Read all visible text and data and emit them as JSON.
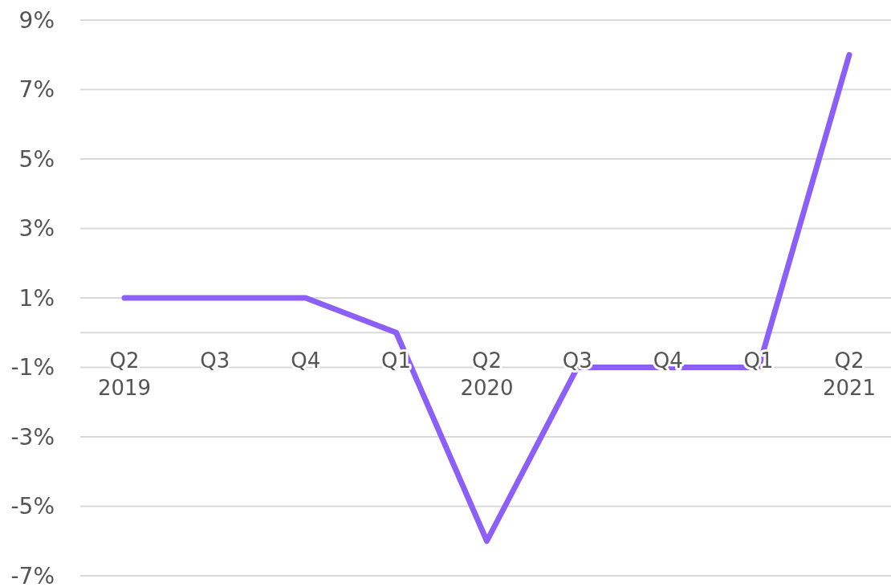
{
  "chart_data": {
    "type": "line",
    "categories": [
      "Q2\n2019",
      "Q3",
      "Q4",
      "Q1",
      "Q2\n2020",
      "Q3",
      "Q4",
      "Q1",
      "Q2\n2021"
    ],
    "series": [
      {
        "color": "#8c5ff9",
        "values": [
          1,
          1,
          1,
          0,
          -6,
          -1,
          -1,
          -1,
          8
        ]
      }
    ],
    "ylim": [
      -7,
      9
    ],
    "yticks": [
      {
        "value": -7,
        "label": "-7%"
      },
      {
        "value": -5,
        "label": "-5%"
      },
      {
        "value": -3,
        "label": "-3%"
      },
      {
        "value": -1,
        "label": "-1%"
      },
      {
        "value": 1,
        "label": "1%"
      },
      {
        "value": 3,
        "label": "3%"
      },
      {
        "value": 5,
        "label": "5%"
      },
      {
        "value": 7,
        "label": "7%"
      },
      {
        "value": 9,
        "label": "9%"
      }
    ],
    "grid": "y",
    "marker": "none",
    "line_style": "solid"
  }
}
